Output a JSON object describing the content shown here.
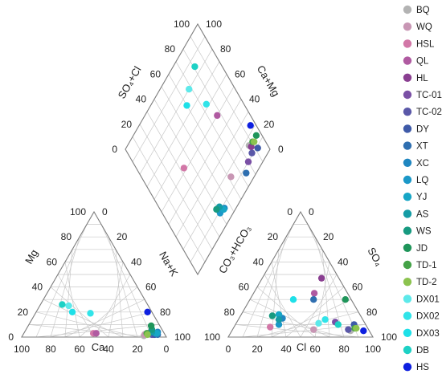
{
  "chart_data": {
    "type": "scatter",
    "subtype": "piper-diagram",
    "grid": true,
    "legend_position": "right",
    "axis_labels": {
      "cation_mg": "Mg",
      "cation_nak": "Na+K",
      "cation_ca": "Ca",
      "anion_co3hco3": "CO₃+HCO₃",
      "anion_so4": "SO₄",
      "anion_cl": "Cl",
      "diamond_so4cl": "SO₄+Cl",
      "diamond_camg": "Ca+Mg"
    },
    "ticks": {
      "cation_mg": [
        "0",
        "20",
        "40",
        "60",
        "80",
        "100"
      ],
      "cation_nak": [
        "0",
        "20",
        "40",
        "60",
        "80",
        "100"
      ],
      "cation_ca": [
        "100",
        "80",
        "60",
        "40",
        "20",
        "0"
      ],
      "anion_co3hco3": [
        "100",
        "80",
        "60",
        "40",
        "20",
        "0"
      ],
      "anion_so4": [
        "0",
        "20",
        "40",
        "60",
        "80",
        "100"
      ],
      "anion_cl": [
        "0",
        "20",
        "40",
        "60",
        "80",
        "100"
      ],
      "diamond_so4cl": [
        "0",
        "20",
        "40",
        "60",
        "80",
        "100"
      ],
      "diamond_camg": [
        "100",
        "80",
        "60",
        "40",
        "20",
        "0"
      ]
    },
    "series": [
      {
        "name": "BQ",
        "color": "#b3b3b3",
        "cation": {
          "mg": 1,
          "nak": 84
        },
        "anion": {
          "so4": 5,
          "cl": 82
        },
        "diamond": {
          "so4cl": 87,
          "camg": 16
        }
      },
      {
        "name": "WQ",
        "color": "#c896b4",
        "cation": {
          "mg": 2,
          "nak": 84
        },
        "anion": {
          "so4": 6,
          "cl": 56
        },
        "diamond": {
          "so4cl": 62,
          "camg": 16
        }
      },
      {
        "name": "HSL",
        "color": "#d277a7",
        "cation": {
          "mg": 3,
          "nak": 48
        },
        "anion": {
          "so4": 8,
          "cl": 25
        },
        "diamond": {
          "so4cl": 33,
          "camg": 52
        }
      },
      {
        "name": "QL",
        "color": "#b05aa1",
        "cation": {
          "mg": 3,
          "nak": 50
        },
        "anion": {
          "so4": 35,
          "cl": 42
        },
        "diamond": {
          "so4cl": 77,
          "camg": 50
        }
      },
      {
        "name": "HL",
        "color": "#8a3f91",
        "cation": {
          "mg": 3,
          "nak": 86
        },
        "anion": {
          "so4": 47,
          "cl": 41
        },
        "diamond": {
          "so4cl": 88,
          "camg": 14
        }
      },
      {
        "name": "TC-01",
        "color": "#7a50a5",
        "cation": {
          "mg": 2,
          "nak": 90
        },
        "anion": {
          "so4": 12,
          "cl": 68
        },
        "diamond": {
          "so4cl": 80,
          "camg": 10
        }
      },
      {
        "name": "TC-02",
        "color": "#5a58a8",
        "cation": {
          "mg": 2,
          "nak": 89
        },
        "anion": {
          "so4": 6,
          "cl": 80
        },
        "diamond": {
          "so4cl": 86,
          "camg": 11
        }
      },
      {
        "name": "DY",
        "color": "#3e5aa8",
        "cation": {
          "mg": 2,
          "nak": 91
        },
        "anion": {
          "so4": 10,
          "cl": 82
        },
        "diamond": {
          "so4cl": 92,
          "camg": 9
        }
      },
      {
        "name": "XT",
        "color": "#2f6fb0",
        "cation": {
          "mg": 2,
          "nak": 93
        },
        "anion": {
          "so4": 30,
          "cl": 44
        },
        "diamond": {
          "so4cl": 74,
          "camg": 7
        }
      },
      {
        "name": "XC",
        "color": "#1f86c0",
        "cation": {
          "mg": 4,
          "nak": 92
        },
        "anion": {
          "so4": 15,
          "cl": 30
        },
        "diamond": {
          "so4cl": 45,
          "camg": 8
        }
      },
      {
        "name": "LQ",
        "color": "#1b98c8",
        "cation": {
          "mg": 3,
          "nak": 91
        },
        "anion": {
          "so4": 10,
          "cl": 30
        },
        "diamond": {
          "so4cl": 40,
          "camg": 9
        }
      },
      {
        "name": "YJ",
        "color": "#17a6c6",
        "cation": {
          "mg": 3,
          "nak": 92
        },
        "anion": {
          "so4": 18,
          "cl": 26
        },
        "diamond": {
          "so4cl": 44,
          "camg": 8
        }
      },
      {
        "name": "AS",
        "color": "#159ca5",
        "cation": {
          "mg": 4,
          "nak": 88
        },
        "anion": {
          "so4": 14,
          "cl": 28
        },
        "diamond": {
          "so4cl": 42,
          "camg": 12
        }
      },
      {
        "name": "WS",
        "color": "#179a80",
        "cation": {
          "mg": 6,
          "nak": 87
        },
        "anion": {
          "so4": 17,
          "cl": 22
        },
        "diamond": {
          "so4cl": 39,
          "camg": 13
        }
      },
      {
        "name": "JD",
        "color": "#1f955a",
        "cation": {
          "mg": 9,
          "nak": 85
        },
        "anion": {
          "so4": 30,
          "cl": 66
        },
        "diamond": {
          "so4cl": 96,
          "camg": 15
        }
      },
      {
        "name": "TD-1",
        "color": "#44a247",
        "cation": {
          "mg": 3,
          "nak": 85
        },
        "anion": {
          "so4": 7,
          "cl": 84
        },
        "diamond": {
          "so4cl": 91,
          "camg": 15
        }
      },
      {
        "name": "TD-2",
        "color": "#8cc34f",
        "cation": {
          "mg": 2,
          "nak": 86
        },
        "anion": {
          "so4": 7,
          "cl": 85
        },
        "diamond": {
          "so4cl": 92,
          "camg": 14
        }
      },
      {
        "name": "DX01",
        "color": "#5de9ea",
        "cation": {
          "mg": 25,
          "nak": 20
        },
        "anion": {
          "so4": 11,
          "cl": 57
        },
        "diamond": {
          "so4cl": 68,
          "camg": 80
        }
      },
      {
        "name": "DX02",
        "color": "#31e4e9",
        "cation": {
          "mg": 19,
          "nak": 38
        },
        "anion": {
          "so4": 14,
          "cl": 60
        },
        "diamond": {
          "so4cl": 74,
          "camg": 62
        }
      },
      {
        "name": "DX03",
        "color": "#1ee0e8",
        "cation": {
          "mg": 20,
          "nak": 25
        },
        "anion": {
          "so4": 30,
          "cl": 30
        },
        "diamond": {
          "so4cl": 60,
          "camg": 75
        }
      },
      {
        "name": "DB",
        "color": "#1dd1c5",
        "cation": {
          "mg": 26,
          "nak": 15
        },
        "anion": {
          "so4": 10,
          "cl": 71
        },
        "diamond": {
          "so4cl": 81,
          "camg": 85
        }
      },
      {
        "name": "HS",
        "color": "#0d1fe0",
        "cation": {
          "mg": 20,
          "nak": 77
        },
        "anion": {
          "so4": 5,
          "cl": 91
        },
        "diamond": {
          "so4cl": 96,
          "camg": 23
        }
      }
    ]
  }
}
